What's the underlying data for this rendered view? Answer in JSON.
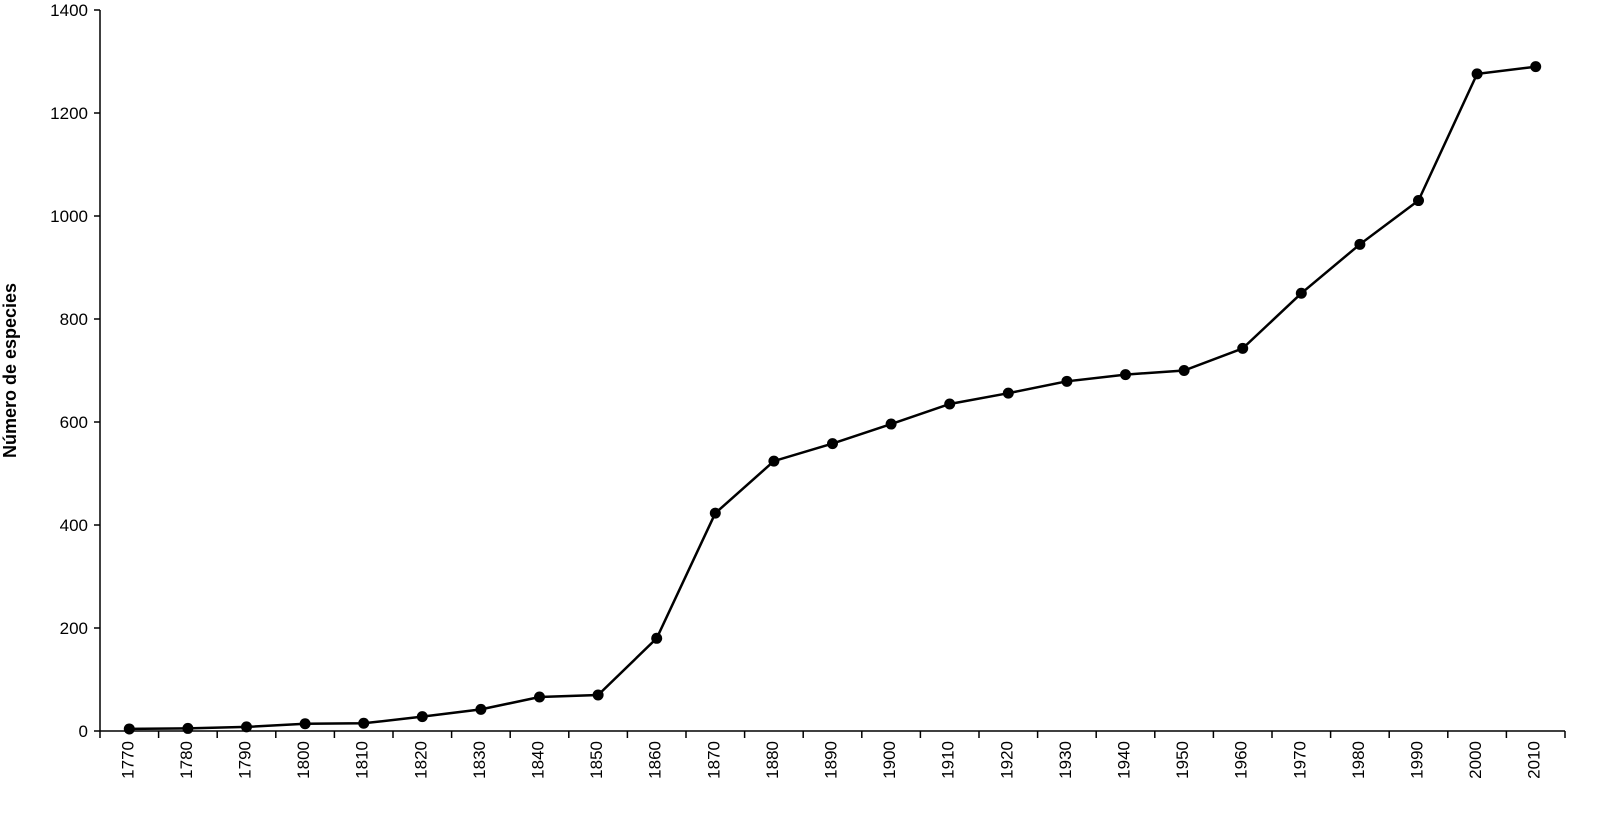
{
  "chart_data": {
    "type": "line",
    "title": "",
    "xlabel": "",
    "ylabel": "Número de especies",
    "ylim": [
      0,
      1400
    ],
    "yticks": [
      0,
      200,
      400,
      600,
      800,
      1000,
      1200,
      1400
    ],
    "categories": [
      "1770",
      "1780",
      "1790",
      "1800",
      "1810",
      "1820",
      "1830",
      "1840",
      "1850",
      "1860",
      "1870",
      "1880",
      "1890",
      "1900",
      "1910",
      "1920",
      "1930",
      "1940",
      "1950",
      "1960",
      "1970",
      "1980",
      "1990",
      "2000",
      "2010"
    ],
    "values": [
      4,
      5,
      8,
      14,
      15,
      28,
      42,
      66,
      70,
      180,
      423,
      524,
      558,
      596,
      635,
      656,
      679,
      692,
      700,
      743,
      850,
      945,
      1030,
      1276,
      1290
    ],
    "grid": false,
    "legend": "none",
    "line_color": "#000000"
  }
}
